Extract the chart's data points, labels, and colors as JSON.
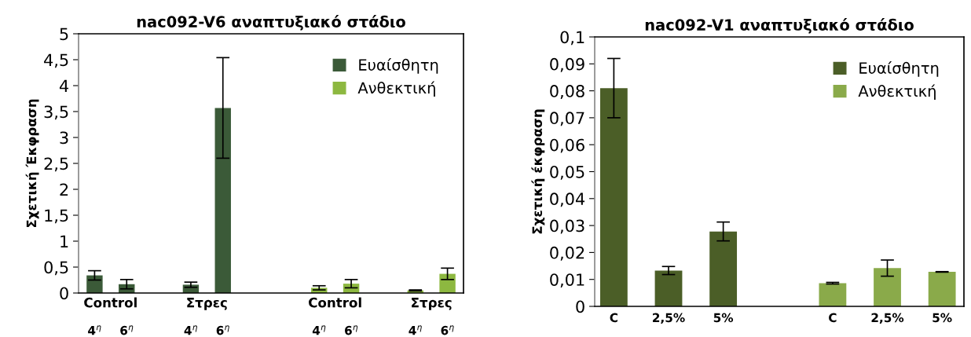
{
  "chart_data": [
    {
      "type": "bar",
      "title": "nac092-V6 αναπτυξιακό στάδιο",
      "ylabel": "Σχετική Έκφραση",
      "categories": [
        "4$^{η}$",
        "6$^{η}$",
        null,
        "4$^{η}$",
        "6$^{η}$",
        null,
        null,
        "4$^{η}$",
        "6$^{η}$",
        null,
        "4$^{η}$",
        "6$^{η}$"
      ],
      "annotations": [
        "Control",
        "Στρες",
        "Control",
        "Στρες"
      ],
      "series": [
        {
          "name": "Ευαίσθητη",
          "color": "#3b5a38",
          "values": [
            0.34,
            0.17,
            null,
            0.16,
            3.57,
            null,
            null,
            null,
            null,
            null,
            null,
            null
          ],
          "errors": [
            0.09,
            0.09,
            null,
            0.05,
            0.97,
            null,
            null,
            null,
            null,
            null,
            null,
            null
          ]
        },
        {
          "name": "Ανθεκτική",
          "color": "#8db840",
          "values": [
            null,
            null,
            null,
            null,
            null,
            null,
            null,
            0.1,
            0.18,
            null,
            0.05,
            0.37
          ],
          "errors": [
            null,
            null,
            null,
            null,
            null,
            null,
            null,
            0.04,
            0.08,
            null,
            0.01,
            0.11
          ]
        }
      ],
      "ylim": [
        0,
        5
      ],
      "yticks": [
        0,
        {
          "value": 0.5,
          "label": "0,5"
        },
        1,
        {
          "value": 1.5,
          "label": "1,5"
        },
        2,
        {
          "value": 2.5,
          "label": "2,5"
        },
        3,
        {
          "value": 3.5,
          "label": "3,5"
        },
        4,
        {
          "value": 4.5,
          "label": "4,5"
        },
        5
      ],
      "grid": false,
      "legend": "top right"
    },
    {
      "type": "bar",
      "title": "nac092-V1 αναπτυξιακό στάδιο",
      "ylabel": "Σχετική έκφραση",
      "categories": [
        "C",
        "2,5%",
        "5%",
        null,
        "C",
        "2,5%",
        "5%"
      ],
      "series": [
        {
          "name": "Ευαίσθητη",
          "color": "#4b5e27",
          "values": [
            0.081,
            0.0133,
            0.0278,
            null,
            null,
            null,
            null
          ],
          "errors": [
            0.011,
            0.0015,
            0.0035,
            null,
            null,
            null,
            null
          ]
        },
        {
          "name": "Ανθεκτική",
          "color": "#8aaa4a",
          "values": [
            null,
            null,
            null,
            null,
            0.0086,
            0.0142,
            0.0128
          ],
          "errors": [
            null,
            null,
            null,
            null,
            0.0003,
            0.003,
            0.0001
          ]
        }
      ],
      "ylim": [
        0,
        0.1
      ],
      "yticks": [
        0,
        {
          "value": 0.01,
          "label": "0,01"
        },
        {
          "value": 0.02,
          "label": "0,02"
        },
        {
          "value": 0.03,
          "label": "0,03"
        },
        {
          "value": 0.04,
          "label": "0,04"
        },
        {
          "value": 0.05,
          "label": "0,05"
        },
        {
          "value": 0.06,
          "label": "0,06"
        },
        {
          "value": 0.07,
          "label": "0,07"
        },
        {
          "value": 0.08,
          "label": "0,08"
        },
        {
          "value": 0.09,
          "label": "0,09"
        },
        {
          "value": 0.1,
          "label": "0,1"
        }
      ],
      "grid": false,
      "legend": "top right"
    }
  ]
}
